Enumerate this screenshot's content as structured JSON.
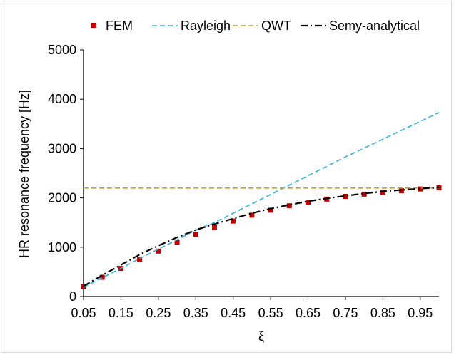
{
  "chart_data": {
    "type": "line",
    "title": "",
    "xlabel": "ξ",
    "ylabel": "HR resonance frequency [Hz]",
    "xlim": [
      0.05,
      1.0
    ],
    "ylim": [
      0,
      5000
    ],
    "x_ticks": [
      "0.05",
      "0.15",
      "0.25",
      "0.35",
      "0.45",
      "0.55",
      "0.65",
      "0.75",
      "0.85",
      "0.95"
    ],
    "x_tick_values": [
      0.05,
      0.15,
      0.25,
      0.35,
      0.45,
      0.55,
      0.65,
      0.75,
      0.85,
      0.95
    ],
    "y_ticks": [
      "0",
      "1000",
      "2000",
      "3000",
      "4000",
      "5000"
    ],
    "y_tick_values": [
      0,
      1000,
      2000,
      3000,
      4000,
      5000
    ],
    "grid": false,
    "legend_position": "top",
    "series": [
      {
        "name": "FEM",
        "style": "markers",
        "color": "#c00000",
        "x": [
          0.05,
          0.1,
          0.15,
          0.2,
          0.25,
          0.3,
          0.35,
          0.4,
          0.45,
          0.5,
          0.55,
          0.6,
          0.65,
          0.7,
          0.75,
          0.8,
          0.85,
          0.9,
          0.95,
          1.0
        ],
        "y": [
          200,
          390,
          570,
          750,
          920,
          1100,
          1260,
          1400,
          1530,
          1650,
          1750,
          1840,
          1910,
          1975,
          2030,
          2075,
          2110,
          2145,
          2180,
          2205
        ]
      },
      {
        "name": "Rayleigh",
        "style": "dashed",
        "color": "#2eb3e0",
        "x": [
          0.05,
          0.1,
          0.15,
          0.2,
          0.25,
          0.3,
          0.35,
          0.4,
          0.45,
          0.5,
          0.55,
          0.6,
          0.65,
          0.7,
          0.75,
          0.8,
          0.85,
          0.9,
          0.95,
          1.0
        ],
        "y": [
          190,
          380,
          570,
          770,
          960,
          1150,
          1350,
          1500,
          1690,
          1880,
          2070,
          2260,
          2450,
          2640,
          2830,
          3010,
          3190,
          3370,
          3550,
          3730
        ]
      },
      {
        "name": "QWT",
        "style": "dashed",
        "color": "#c9a02a",
        "x": [
          0.05,
          1.0
        ],
        "y": [
          2200,
          2200
        ]
      },
      {
        "name": "Semy-analytical",
        "style": "dash-dot",
        "color": "#000000",
        "x": [
          0.05,
          0.1,
          0.15,
          0.2,
          0.25,
          0.3,
          0.35,
          0.4,
          0.45,
          0.5,
          0.55,
          0.6,
          0.65,
          0.7,
          0.75,
          0.8,
          0.85,
          0.9,
          0.95,
          1.0
        ],
        "y": [
          210,
          430,
          640,
          850,
          1030,
          1200,
          1350,
          1470,
          1580,
          1690,
          1780,
          1860,
          1930,
          1990,
          2040,
          2090,
          2130,
          2160,
          2190,
          2210
        ]
      }
    ]
  }
}
